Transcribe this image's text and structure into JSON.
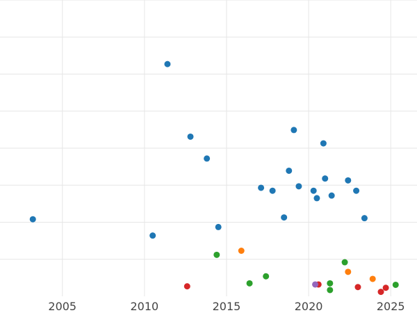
{
  "chart_data": {
    "type": "scatter",
    "title": "",
    "xlabel": "",
    "ylabel": "",
    "xlim": [
      2001.2,
      2026.6
    ],
    "ylim": [
      0,
      8
    ],
    "x_ticks": [
      2005,
      2010,
      2015,
      2020,
      2025
    ],
    "x_tick_labels": [
      "2005",
      "2010",
      "2015",
      "2020",
      "2025"
    ],
    "y_gridlines": [
      1,
      2,
      3,
      4,
      5,
      6,
      7,
      8
    ],
    "y_tick_labels_visible": false,
    "grid": true,
    "legend": "none",
    "series": [
      {
        "color": "#1f77b4",
        "points": [
          {
            "x": 2003.2,
            "y": 2.08
          },
          {
            "x": 2010.5,
            "y": 1.64
          },
          {
            "x": 2011.4,
            "y": 6.27
          },
          {
            "x": 2012.8,
            "y": 4.31
          },
          {
            "x": 2013.8,
            "y": 3.72
          },
          {
            "x": 2014.5,
            "y": 1.87
          },
          {
            "x": 2017.1,
            "y": 2.93
          },
          {
            "x": 2017.8,
            "y": 2.85
          },
          {
            "x": 2018.5,
            "y": 2.13
          },
          {
            "x": 2018.8,
            "y": 3.39
          },
          {
            "x": 2019.1,
            "y": 4.49
          },
          {
            "x": 2019.4,
            "y": 2.97
          },
          {
            "x": 2020.3,
            "y": 2.85
          },
          {
            "x": 2020.5,
            "y": 2.65
          },
          {
            "x": 2020.9,
            "y": 4.13
          },
          {
            "x": 2021.0,
            "y": 3.18
          },
          {
            "x": 2021.4,
            "y": 2.72
          },
          {
            "x": 2022.4,
            "y": 3.13
          },
          {
            "x": 2022.9,
            "y": 2.85
          },
          {
            "x": 2023.4,
            "y": 2.11
          }
        ]
      },
      {
        "color": "#ff7f0e",
        "points": [
          {
            "x": 2015.9,
            "y": 1.23
          },
          {
            "x": 2022.4,
            "y": 0.66
          },
          {
            "x": 2023.9,
            "y": 0.47
          }
        ]
      },
      {
        "color": "#2ca02c",
        "points": [
          {
            "x": 2014.4,
            "y": 1.12
          },
          {
            "x": 2016.4,
            "y": 0.35
          },
          {
            "x": 2017.4,
            "y": 0.54
          },
          {
            "x": 2021.3,
            "y": 0.35
          },
          {
            "x": 2021.3,
            "y": 0.17
          },
          {
            "x": 2022.2,
            "y": 0.92
          },
          {
            "x": 2025.3,
            "y": 0.31
          }
        ]
      },
      {
        "color": "#d62728",
        "points": [
          {
            "x": 2012.6,
            "y": 0.27
          },
          {
            "x": 2020.6,
            "y": 0.32
          },
          {
            "x": 2023.0,
            "y": 0.25
          },
          {
            "x": 2024.4,
            "y": 0.12
          },
          {
            "x": 2024.7,
            "y": 0.23
          }
        ]
      },
      {
        "color": "#9467bd",
        "points": [
          {
            "x": 2020.4,
            "y": 0.32
          }
        ]
      }
    ]
  }
}
